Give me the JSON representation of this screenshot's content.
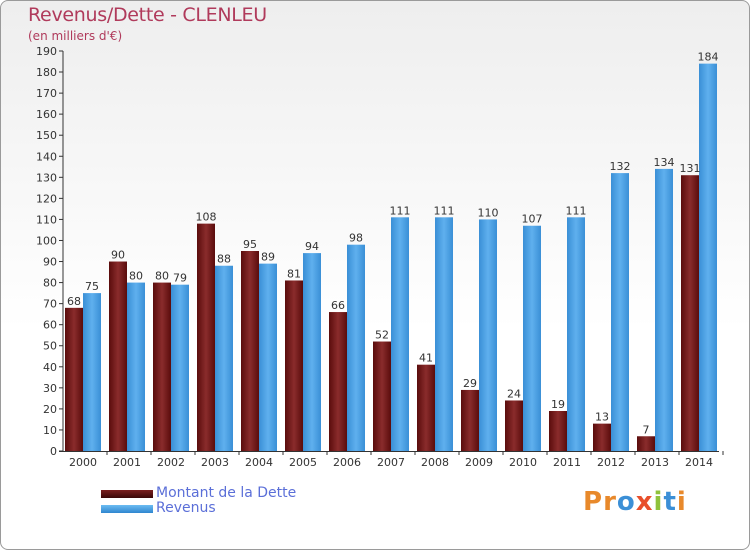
{
  "title": "Revenus/Dette - CLENLEU",
  "subtitle": "(en milliers d'€)",
  "colors": {
    "dette": "#7a1f1f",
    "revenus": "#4aa3e6",
    "title": "#b03a5b",
    "legend_text": "#5b6fd8"
  },
  "legend": [
    {
      "label": "Montant de la Dette",
      "series": "dette"
    },
    {
      "label": "Revenus",
      "series": "revenus"
    }
  ],
  "logo": {
    "text": "Proxiti"
  },
  "chart_data": {
    "type": "bar",
    "title": "Revenus/Dette - CLENLEU",
    "subtitle": "(en milliers d'€)",
    "categories": [
      "2000",
      "2001",
      "2002",
      "2003",
      "2004",
      "2005",
      "2006",
      "2007",
      "2008",
      "2009",
      "2010",
      "2011",
      "2012",
      "2013",
      "2014"
    ],
    "series": [
      {
        "name": "Montant de la Dette",
        "key": "dette",
        "values": [
          68,
          90,
          80,
          108,
          95,
          81,
          66,
          52,
          41,
          29,
          24,
          19,
          13,
          7,
          131
        ]
      },
      {
        "name": "Revenus",
        "key": "revenus",
        "values": [
          75,
          80,
          79,
          88,
          89,
          94,
          98,
          111,
          111,
          110,
          107,
          111,
          132,
          134,
          184
        ]
      }
    ],
    "ylim": [
      0,
      190
    ],
    "yticks": [
      0,
      10,
      20,
      30,
      40,
      50,
      60,
      70,
      80,
      90,
      100,
      110,
      120,
      130,
      140,
      150,
      160,
      170,
      180,
      190
    ],
    "grid": false,
    "legend_position": "bottom-left"
  }
}
